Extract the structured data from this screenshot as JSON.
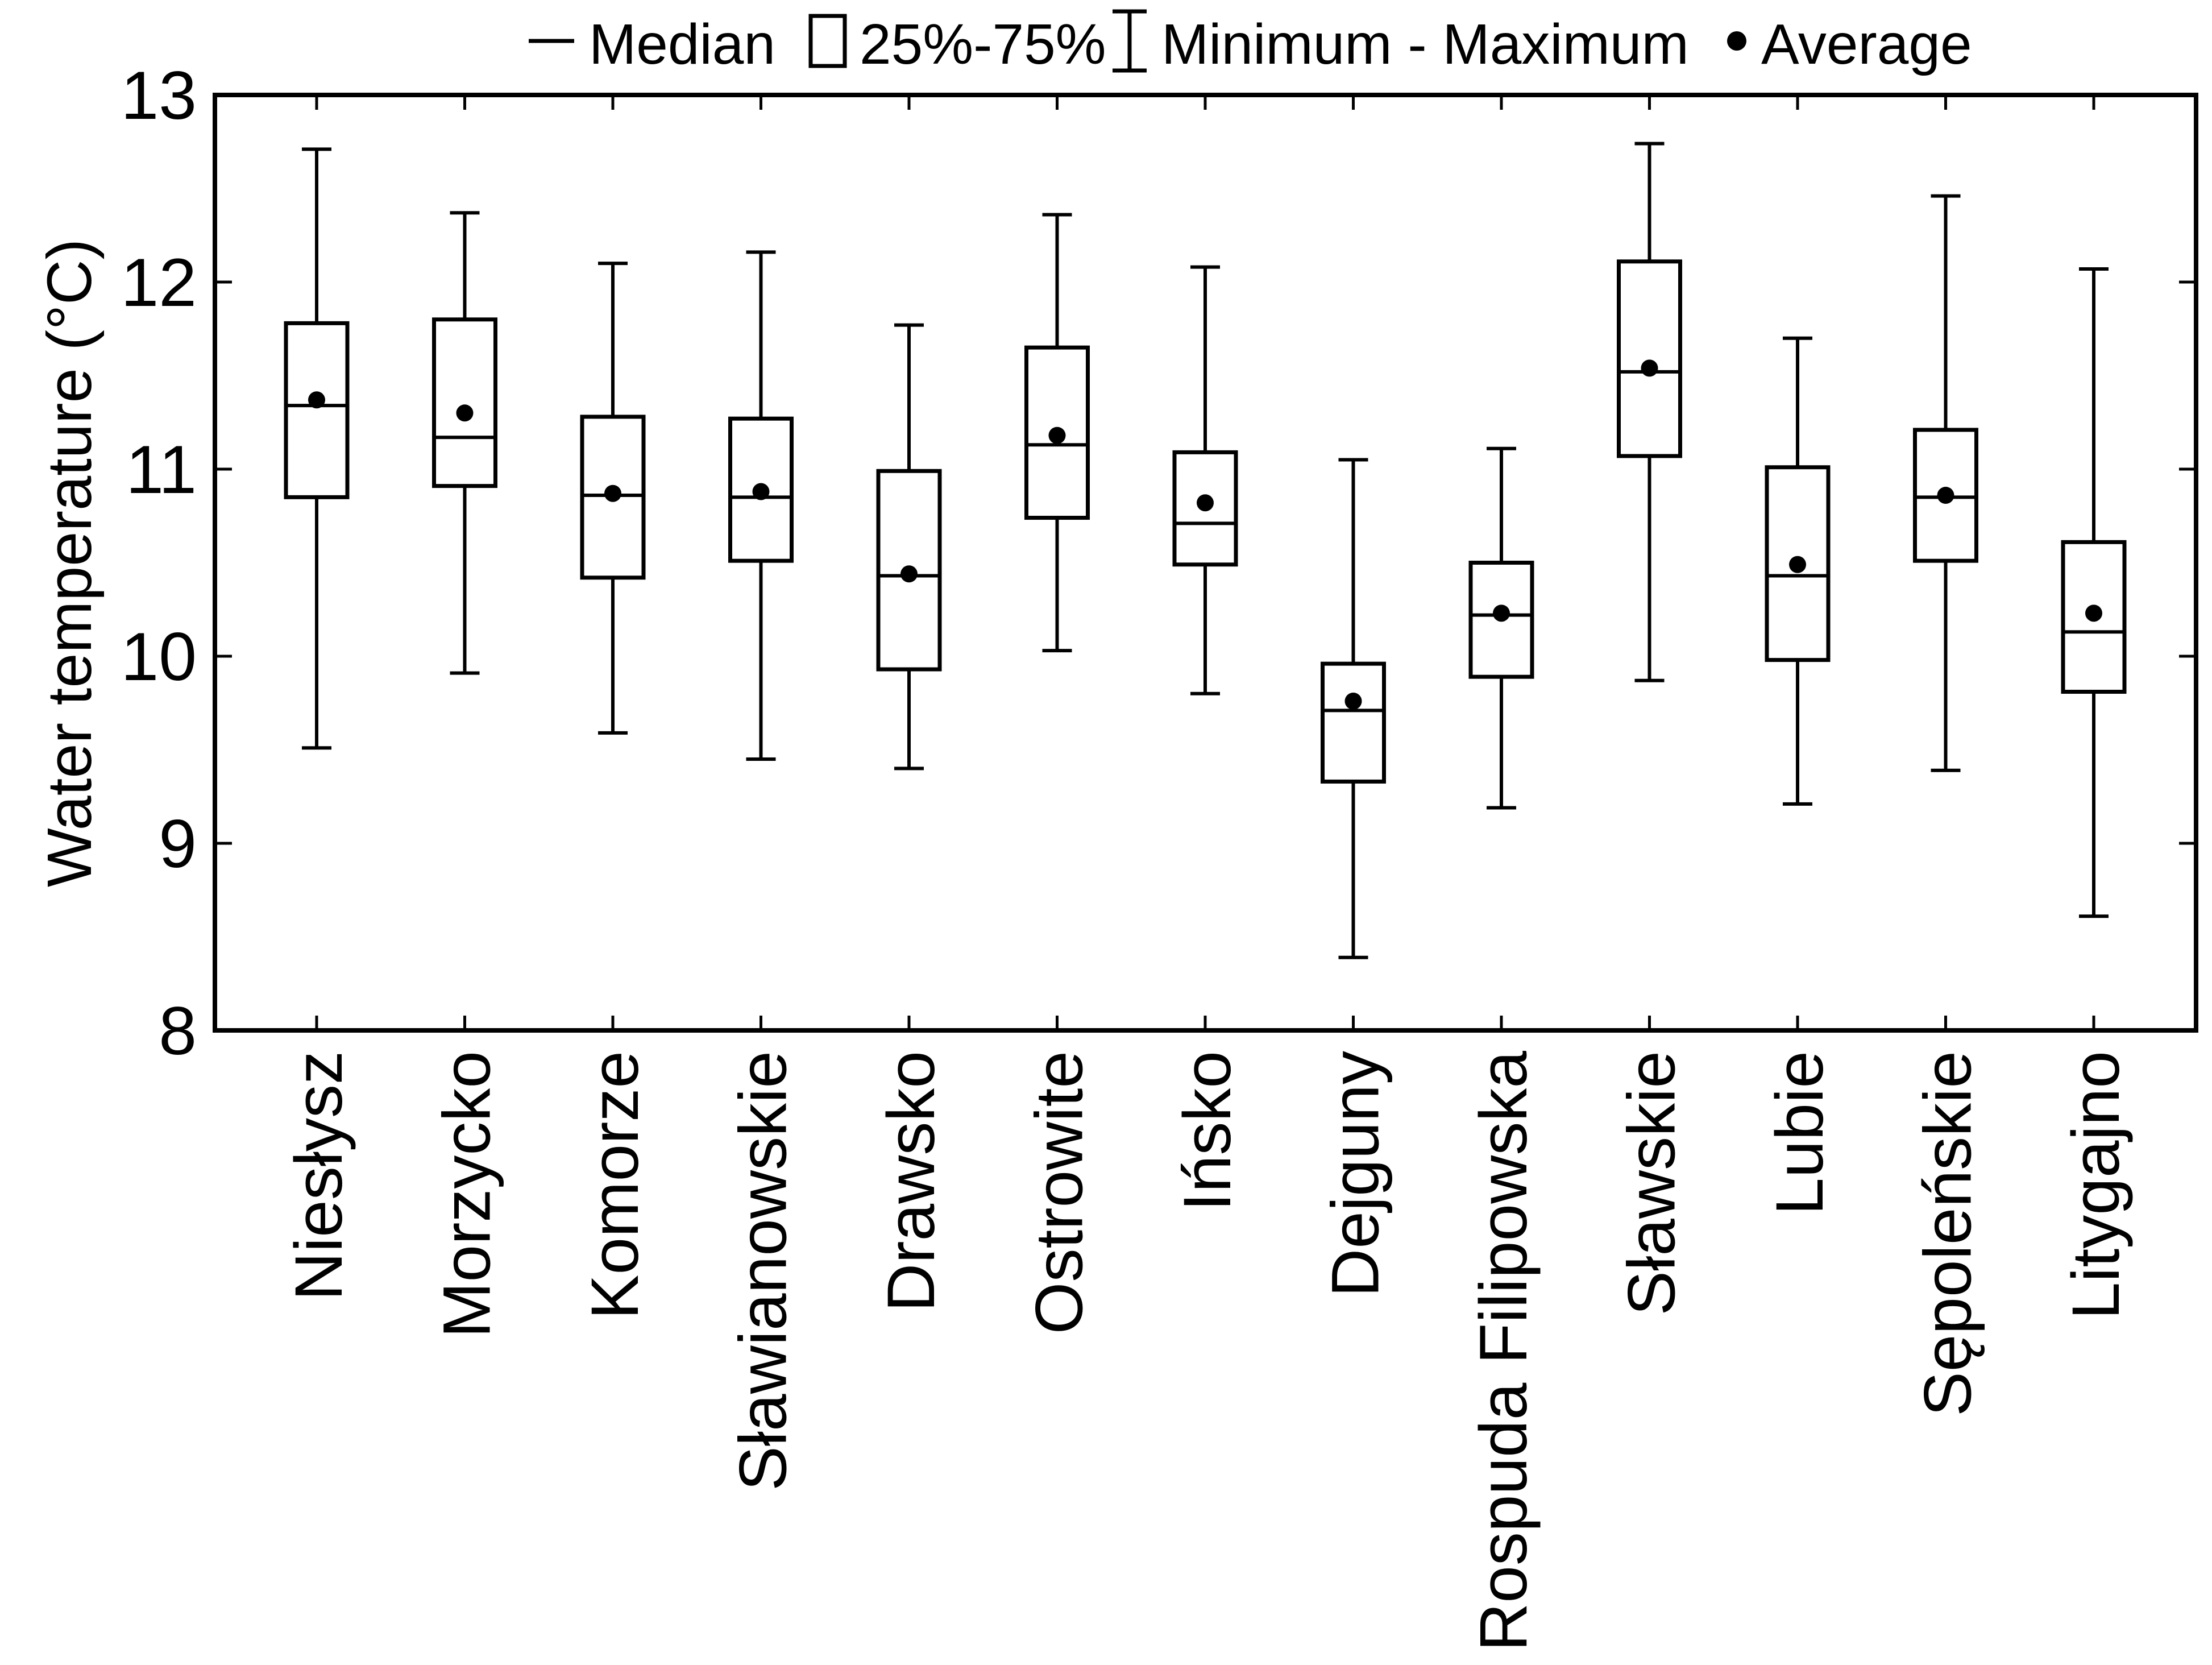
{
  "figure": {
    "background_color": "#ffffff",
    "ink_color": "#000000"
  },
  "legend": {
    "position": "top",
    "items": [
      {
        "marker": "median-line",
        "label": "Median"
      },
      {
        "marker": "box",
        "label": "25%-75%"
      },
      {
        "marker": "whisker",
        "label": "Minimum - Maximum"
      },
      {
        "marker": "dot",
        "label": "Average"
      }
    ]
  },
  "chart_data": {
    "type": "box",
    "title": "",
    "xlabel": "",
    "ylabel": "Water temperature (°C)",
    "ylim": [
      8,
      13
    ],
    "yticks": [
      8,
      9,
      10,
      11,
      12,
      13
    ],
    "grid": false,
    "legend_position": "top",
    "categories": [
      "Niesłysz",
      "Morzycko",
      "Komorze",
      "Sławianowskie",
      "Drawsko",
      "Ostrowite",
      "Ińsko",
      "Dejguny",
      "Rospuda Filipowska",
      "Sławskie",
      "Lubie",
      "Sępoleńskie",
      "Litygajno"
    ],
    "series": [
      {
        "name": "Niesłysz",
        "min": 9.51,
        "q1": 10.85,
        "median": 11.34,
        "q3": 11.78,
        "max": 12.71,
        "average": 11.37
      },
      {
        "name": "Morzycko",
        "min": 9.91,
        "q1": 10.91,
        "median": 11.17,
        "q3": 11.8,
        "max": 12.37,
        "average": 11.3
      },
      {
        "name": "Komorze",
        "min": 9.59,
        "q1": 10.42,
        "median": 10.86,
        "q3": 11.28,
        "max": 12.1,
        "average": 10.87
      },
      {
        "name": "Sławianowskie",
        "min": 9.45,
        "q1": 10.51,
        "median": 10.85,
        "q3": 11.27,
        "max": 12.16,
        "average": 10.88
      },
      {
        "name": "Drawsko",
        "min": 9.4,
        "q1": 9.93,
        "median": 10.43,
        "q3": 10.99,
        "max": 11.77,
        "average": 10.44
      },
      {
        "name": "Ostrowite",
        "min": 10.03,
        "q1": 10.74,
        "median": 11.13,
        "q3": 11.65,
        "max": 12.36,
        "average": 11.18
      },
      {
        "name": "Ińsko",
        "min": 9.8,
        "q1": 10.49,
        "median": 10.71,
        "q3": 11.09,
        "max": 12.08,
        "average": 10.82
      },
      {
        "name": "Dejguny",
        "min": 8.39,
        "q1": 9.33,
        "median": 9.71,
        "q3": 9.96,
        "max": 11.05,
        "average": 9.76
      },
      {
        "name": "Rospuda Filipowska",
        "min": 9.19,
        "q1": 9.89,
        "median": 10.22,
        "q3": 10.5,
        "max": 11.11,
        "average": 10.23
      },
      {
        "name": "Sławskie",
        "min": 9.87,
        "q1": 11.07,
        "median": 11.52,
        "q3": 12.11,
        "max": 12.74,
        "average": 11.54
      },
      {
        "name": "Lubie",
        "min": 9.21,
        "q1": 9.98,
        "median": 10.43,
        "q3": 11.01,
        "max": 11.7,
        "average": 10.49
      },
      {
        "name": "Sępoleńskie",
        "min": 9.39,
        "q1": 10.51,
        "median": 10.85,
        "q3": 11.21,
        "max": 12.46,
        "average": 10.86
      },
      {
        "name": "Litygajno",
        "min": 8.61,
        "q1": 9.81,
        "median": 10.13,
        "q3": 10.61,
        "max": 12.07,
        "average": 10.23
      }
    ]
  }
}
